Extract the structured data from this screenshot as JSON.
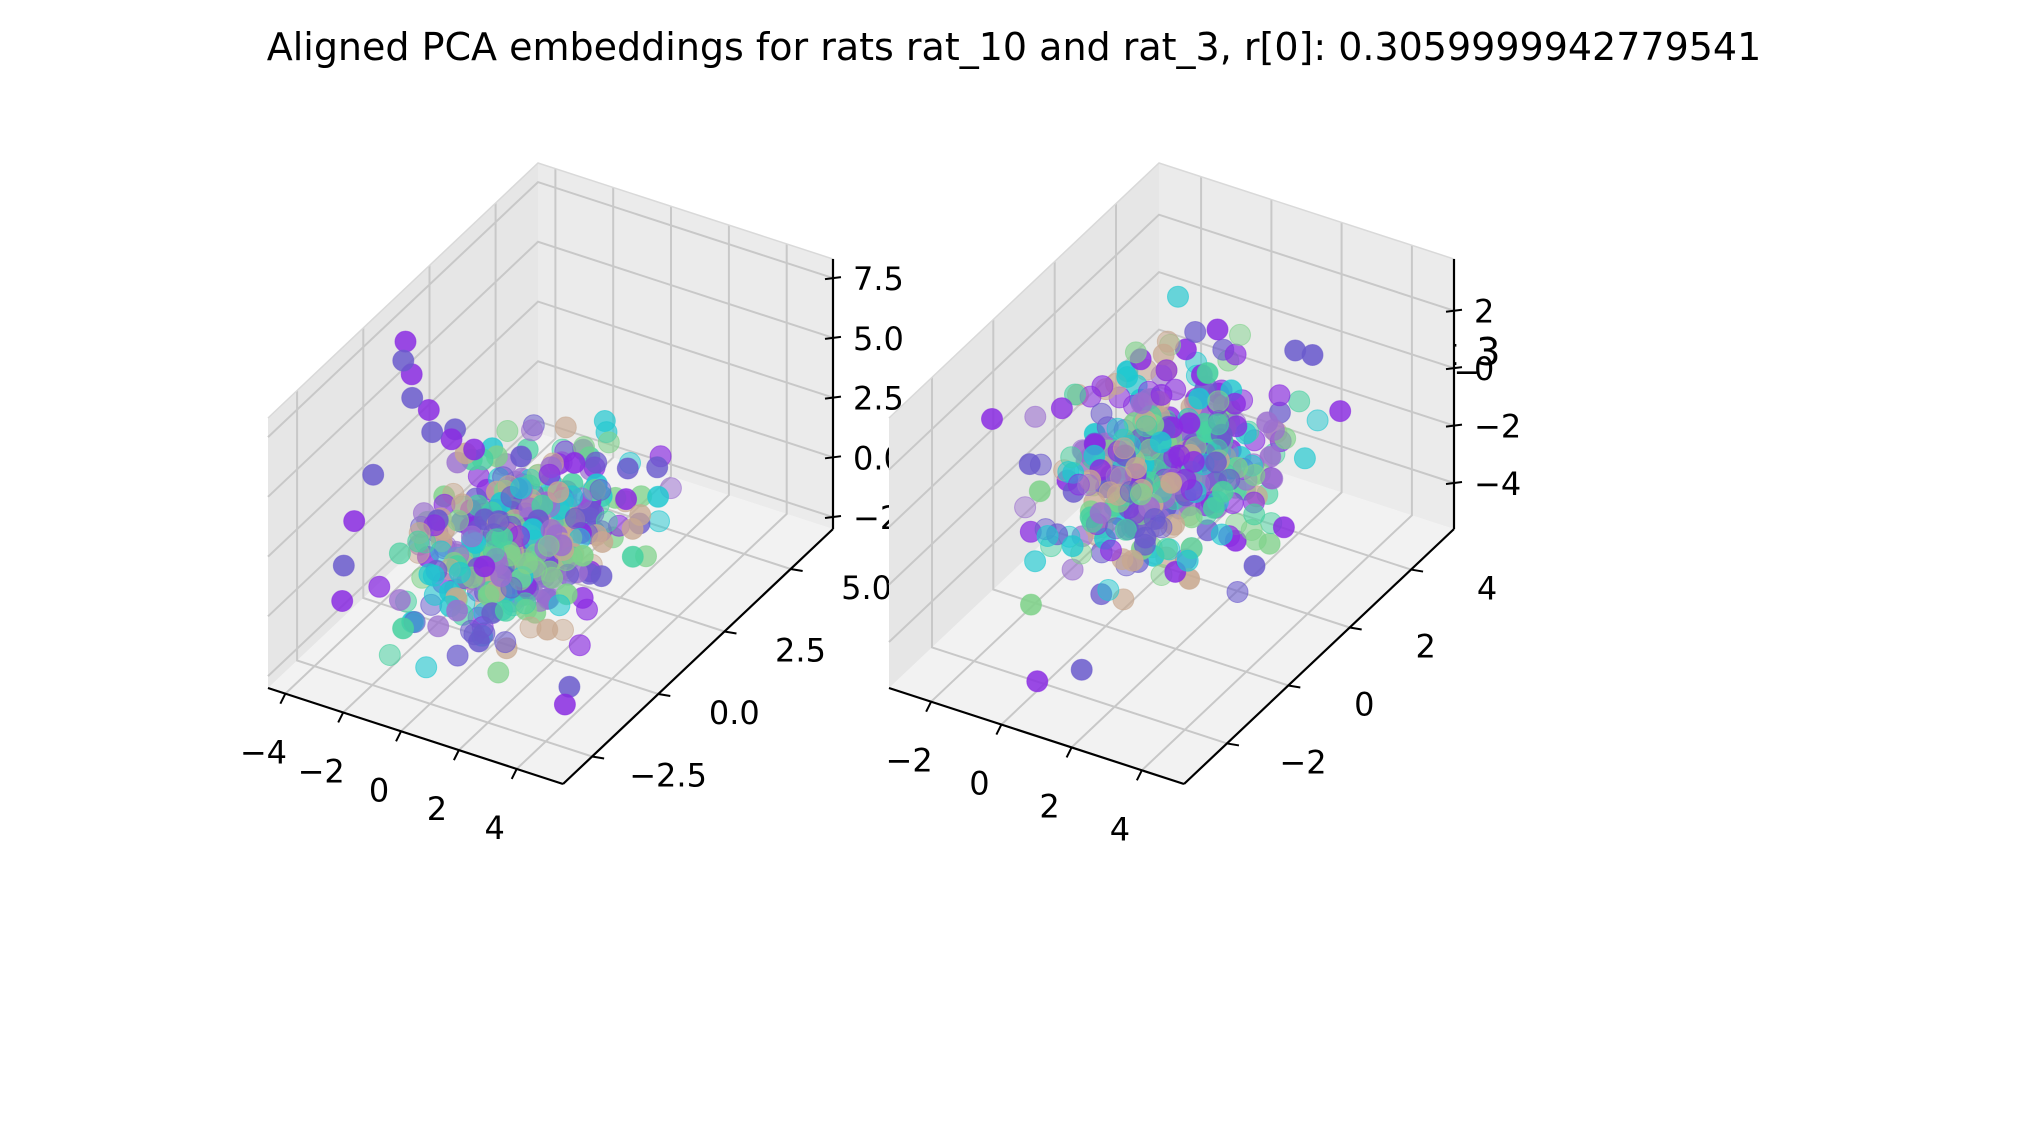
{
  "figure": {
    "suptitle": "Aligned PCA embeddings for rats rat_10 and rat_3, r[0]: 0.3059999942779541"
  },
  "chart_data": [
    {
      "type": "scatter",
      "projection": "3d",
      "title": "rat_10",
      "xlabel": "",
      "ylabel": "",
      "zlabel": "",
      "xlim": [
        -4.6,
        5.6
      ],
      "ylim": [
        -3.6,
        6.6
      ],
      "zlim": [
        -3.0,
        8.3
      ],
      "xticks": [
        -4,
        -2,
        0,
        2,
        4
      ],
      "yticks": [
        -2.5,
        0.0,
        2.5,
        5.0
      ],
      "zticks": [
        -2.5,
        0.0,
        2.5,
        5.0,
        7.5
      ],
      "xtick_labels": [
        "−4",
        "−2",
        "0",
        "2",
        "4"
      ],
      "ytick_labels": [
        "−2.5",
        "0.0",
        "2.5",
        "5.0"
      ],
      "ztick_labels": [
        "−2.5",
        "0.0",
        "2.5",
        "5.0",
        "7.5"
      ],
      "grid": true,
      "legend": "none",
      "colormap": [
        "#8a2be2",
        "#6a5acd",
        "#1fc8d0",
        "#48d1a0",
        "#7fd28a",
        "#c8a890",
        "#9b6fcf"
      ],
      "points": {
        "count": 420,
        "note": "",
        "seed": 17,
        "center": [
          0.0,
          1.0,
          0.2
        ],
        "spread": [
          1.3,
          1.4,
          0.9
        ],
        "tail": [
          [
            -3.6,
            0.5,
            7.6
          ],
          [
            -3.4,
            0.2,
            7.2
          ],
          [
            -3.2,
            0.3,
            6.6
          ],
          [
            -3.0,
            0.1,
            5.9
          ],
          [
            -2.7,
            0.4,
            5.2
          ],
          [
            -2.4,
            0.2,
            4.6
          ],
          [
            -2.1,
            0.6,
            4.0
          ],
          [
            -3.8,
            -0.5,
            3.0
          ],
          [
            -4.0,
            -1.0,
            1.5
          ],
          [
            -3.9,
            -1.5,
            0.2
          ],
          [
            -3.5,
            -2.0,
            -0.6
          ],
          [
            3.9,
            -1.5,
            -1.8
          ],
          [
            4.2,
            -2.0,
            -1.9
          ],
          [
            -2.8,
            1.5,
            3.2
          ],
          [
            -1.5,
            0.8,
            3.6
          ],
          [
            1.8,
            3.0,
            1.8
          ],
          [
            2.2,
            2.5,
            1.2
          ]
        ]
      }
    },
    {
      "type": "scatter",
      "projection": "3d",
      "title": "rat_3",
      "xlabel": "",
      "ylabel": "",
      "zlabel": "",
      "xlim": [
        -3.2,
        5.2
      ],
      "ylim": [
        -3.4,
        5.4
      ],
      "zlim": [
        -5.6,
        3.8
      ],
      "xticks": [
        -2,
        0,
        2,
        4
      ],
      "yticks": [
        -2,
        0,
        2,
        4
      ],
      "zticks": [
        -4,
        -2,
        0,
        2
      ],
      "xtick_labels": [
        "−2",
        "0",
        "2",
        "4"
      ],
      "ytick_labels": [
        "−2",
        "0",
        "2",
        "4"
      ],
      "ztick_labels": [
        "−4",
        "−2",
        "0",
        "2"
      ],
      "grid": true,
      "legend": "none",
      "colormap": [
        "#8a2be2",
        "#6a5acd",
        "#1fc8d0",
        "#48d1a0",
        "#7fd28a",
        "#c8a890",
        "#9b6fcf"
      ],
      "points": {
        "count": 440,
        "note": "",
        "seed": 29,
        "center": [
          0.9,
          1.0,
          -0.6
        ],
        "spread": [
          1.1,
          1.2,
          1.4
        ],
        "tail": [
          [
            -2.8,
            -0.5,
            1.0
          ],
          [
            -2.6,
            0.5,
            -1.5
          ],
          [
            -2.4,
            1.5,
            -3.0
          ],
          [
            3.8,
            0.5,
            -2.5
          ],
          [
            4.2,
            1.0,
            -1.5
          ],
          [
            1.5,
            -2.5,
            -4.0
          ],
          [
            0.5,
            -2.8,
            -4.5
          ],
          [
            2.6,
            3.2,
            1.8
          ],
          [
            1.0,
            2.5,
            2.6
          ]
        ]
      }
    }
  ]
}
